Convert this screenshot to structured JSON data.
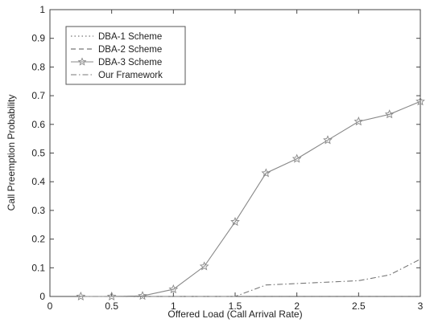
{
  "chart_data": {
    "type": "line",
    "xlabel": "Offered Load (Call Arrival Rate)",
    "ylabel": "Call Preemption Probability",
    "xlim": [
      0,
      3
    ],
    "ylim": [
      0,
      1
    ],
    "xticks": [
      "0",
      "0.5",
      "1",
      "1.5",
      "2",
      "2.5",
      "3"
    ],
    "yticks": [
      "0",
      "0.1",
      "0.2",
      "0.3",
      "0.4",
      "0.5",
      "0.6",
      "0.7",
      "0.8",
      "0.9",
      "1"
    ],
    "grid": false,
    "legend_position": "top-left",
    "x": [
      0.25,
      0.5,
      0.75,
      1.0,
      1.25,
      1.5,
      1.75,
      2.0,
      2.25,
      2.5,
      2.75,
      3.0
    ],
    "series": [
      {
        "name": "DBA-1 Scheme",
        "style": "dotted",
        "marker": "none",
        "color": "#555555",
        "values": [
          0,
          0,
          0,
          0,
          0,
          0,
          0,
          0,
          0,
          0,
          0,
          0
        ]
      },
      {
        "name": "DBA-2 Scheme",
        "style": "dashed",
        "marker": "none",
        "color": "#555555",
        "values": [
          0,
          0,
          0,
          0,
          0,
          0,
          0,
          0,
          0,
          0,
          0,
          0
        ]
      },
      {
        "name": "DBA-3 Scheme",
        "style": "solid",
        "marker": "star",
        "color": "#888888",
        "values": [
          0,
          0,
          0.002,
          0.025,
          0.105,
          0.26,
          0.43,
          0.48,
          0.545,
          0.61,
          0.635,
          0.68
        ]
      },
      {
        "name": "Our Framework",
        "style": "dash-dot",
        "marker": "none",
        "color": "#777777",
        "values": [
          0,
          0,
          0,
          0,
          0,
          0,
          0.04,
          0.045,
          0.05,
          0.055,
          0.075,
          0.13
        ]
      }
    ]
  }
}
